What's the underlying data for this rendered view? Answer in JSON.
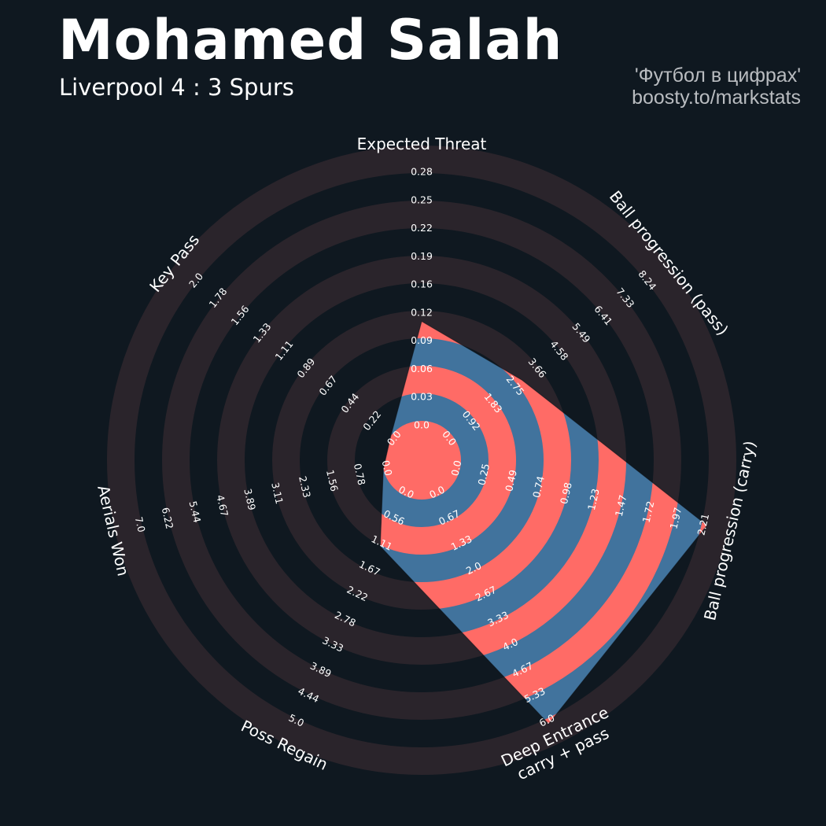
{
  "header": {
    "title": "Mohamed Salah",
    "subtitle": "Liverpool 4 : 3 Spurs",
    "credit_line1": "'Футбол в цифрах'",
    "credit_line2": "boosty.to/markstats"
  },
  "colors": {
    "background": "#0f1820",
    "ring": "#2a242b",
    "value_blue": "#41739d",
    "value_red": "#ff6b66",
    "text": "#ffffff",
    "credit": "#b9bcc0"
  },
  "chart_data": {
    "type": "radar",
    "axes": [
      {
        "label": "Expected Threat",
        "min": 0.0,
        "max": 0.28,
        "value": 0.11,
        "ticks": [
          "0.0",
          "0.03",
          "0.06",
          "0.09",
          "0.12",
          "0.16",
          "0.19",
          "0.22",
          "0.25",
          "0.28"
        ]
      },
      {
        "label": "Ball progression (pass)",
        "min": 0.0,
        "max": 8.24,
        "value": 2.9,
        "ticks": [
          "0.0",
          "0.92",
          "1.83",
          "2.75",
          "3.66",
          "4.58",
          "5.49",
          "6.41",
          "7.33",
          "8.24"
        ]
      },
      {
        "label": "Ball progression (carry)",
        "min": 0.0,
        "max": 2.21,
        "value": 2.21,
        "ticks": [
          "0.0",
          "0.25",
          "0.49",
          "0.74",
          "0.98",
          "1.23",
          "1.47",
          "1.72",
          "1.97",
          "2.21"
        ]
      },
      {
        "label": "Deep Entrance\ncarry + pass",
        "min": 0.0,
        "max": 6.0,
        "value": 6.0,
        "ticks": [
          "0.0",
          "0.67",
          "1.33",
          "2.0",
          "2.67",
          "3.33",
          "4.0",
          "4.67",
          "5.33",
          "6.0"
        ]
      },
      {
        "label": "Poss Regain",
        "min": 0.0,
        "max": 5.0,
        "value": 1.11,
        "ticks": [
          "0.0",
          "0.56",
          "1.11",
          "1.67",
          "2.22",
          "2.78",
          "3.33",
          "3.89",
          "4.44",
          "5.0"
        ]
      },
      {
        "label": "Aerials Won",
        "min": 0.0,
        "max": 7.0,
        "value": 0.0,
        "ticks": [
          "0.0",
          "0.78",
          "1.56",
          "2.33",
          "3.11",
          "3.89",
          "4.67",
          "5.44",
          "6.22",
          "7.0"
        ]
      },
      {
        "label": "Key Pass",
        "min": 0.0,
        "max": 2.0,
        "value": 0.0,
        "ticks": [
          "0.0",
          "0.22",
          "0.44",
          "0.67",
          "0.89",
          "1.11",
          "1.33",
          "1.56",
          "1.78",
          "2.0"
        ]
      }
    ]
  }
}
